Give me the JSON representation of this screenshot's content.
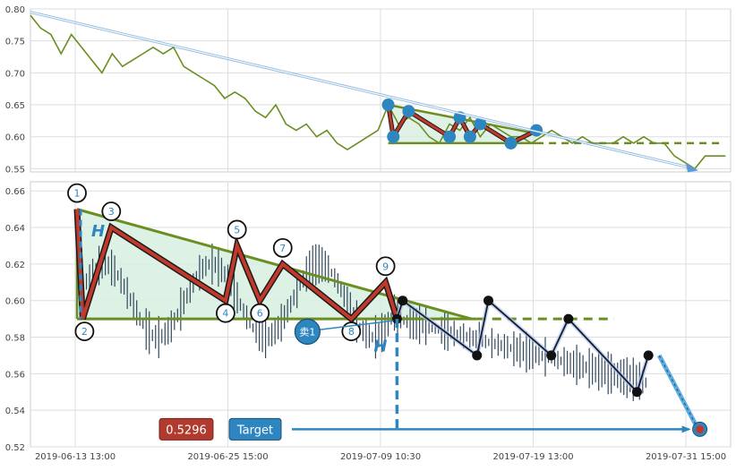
{
  "chart_data": {
    "type": "line",
    "x_ticks": [
      "2019-06-13 13:00",
      "2019-06-25 15:00",
      "2019-07-09 10:30",
      "2019-07-19 13:00",
      "2019-07-31 15:00"
    ],
    "top_panel": {
      "ylim": [
        0.545,
        0.8
      ],
      "y_ticks": [
        "0.55",
        "0.60",
        "0.65",
        "0.70",
        "0.75",
        "0.80"
      ],
      "price_series": [
        [
          0,
          0.79
        ],
        [
          2,
          0.77
        ],
        [
          4,
          0.76
        ],
        [
          6,
          0.73
        ],
        [
          8,
          0.76
        ],
        [
          10,
          0.74
        ],
        [
          12,
          0.72
        ],
        [
          14,
          0.7
        ],
        [
          16,
          0.73
        ],
        [
          18,
          0.71
        ],
        [
          20,
          0.72
        ],
        [
          22,
          0.73
        ],
        [
          24,
          0.74
        ],
        [
          26,
          0.73
        ],
        [
          28,
          0.74
        ],
        [
          30,
          0.71
        ],
        [
          32,
          0.7
        ],
        [
          34,
          0.69
        ],
        [
          36,
          0.68
        ],
        [
          38,
          0.66
        ],
        [
          40,
          0.67
        ],
        [
          42,
          0.66
        ],
        [
          44,
          0.64
        ],
        [
          46,
          0.63
        ],
        [
          48,
          0.65
        ],
        [
          50,
          0.62
        ],
        [
          52,
          0.61
        ],
        [
          54,
          0.62
        ],
        [
          56,
          0.6
        ],
        [
          58,
          0.61
        ],
        [
          60,
          0.59
        ],
        [
          62,
          0.58
        ],
        [
          64,
          0.59
        ],
        [
          66,
          0.6
        ],
        [
          68,
          0.61
        ],
        [
          70,
          0.65
        ],
        [
          72,
          0.62
        ],
        [
          74,
          0.63
        ],
        [
          76,
          0.62
        ],
        [
          78,
          0.6
        ],
        [
          80,
          0.59
        ],
        [
          82,
          0.62
        ],
        [
          84,
          0.61
        ],
        [
          86,
          0.63
        ],
        [
          88,
          0.6
        ],
        [
          90,
          0.62
        ],
        [
          92,
          0.61
        ],
        [
          94,
          0.6
        ],
        [
          96,
          0.6
        ],
        [
          98,
          0.59
        ],
        [
          100,
          0.6
        ],
        [
          102,
          0.61
        ],
        [
          104,
          0.6
        ],
        [
          106,
          0.59
        ],
        [
          108,
          0.6
        ],
        [
          110,
          0.59
        ],
        [
          112,
          0.59
        ],
        [
          114,
          0.59
        ],
        [
          116,
          0.6
        ],
        [
          118,
          0.59
        ],
        [
          120,
          0.6
        ],
        [
          122,
          0.59
        ],
        [
          124,
          0.59
        ],
        [
          126,
          0.57
        ],
        [
          128,
          0.56
        ],
        [
          130,
          0.55
        ],
        [
          132,
          0.57
        ],
        [
          134,
          0.57
        ],
        [
          136,
          0.57
        ]
      ],
      "pattern_points": [
        [
          70,
          0.65
        ],
        [
          71,
          0.6
        ],
        [
          74,
          0.64
        ],
        [
          82,
          0.6
        ],
        [
          84,
          0.63
        ],
        [
          86,
          0.6
        ],
        [
          88,
          0.62
        ],
        [
          94,
          0.59
        ],
        [
          99,
          0.61
        ]
      ],
      "triangle_upper": [
        [
          70,
          0.65
        ],
        [
          99,
          0.605
        ],
        [
          135,
          0.59
        ]
      ],
      "triangle_lower": [
        [
          70,
          0.59
        ],
        [
          135,
          0.59
        ]
      ],
      "trend_arrow": [
        [
          0,
          0.795
        ],
        [
          130,
          0.55
        ]
      ]
    },
    "bottom_panel": {
      "ylim": [
        0.52,
        0.665
      ],
      "y_ticks": [
        "0.52",
        "0.54",
        "0.56",
        "0.58",
        "0.60",
        "0.62",
        "0.64",
        "0.66"
      ],
      "pattern_points": [
        {
          "label": "1",
          "x": 0,
          "y": 0.65
        },
        {
          "label": "2",
          "x": 1,
          "y": 0.59
        },
        {
          "label": "3",
          "x": 6,
          "y": 0.64
        },
        {
          "label": "4",
          "x": 26,
          "y": 0.6
        },
        {
          "label": "5",
          "x": 28,
          "y": 0.63
        },
        {
          "label": "6",
          "x": 32,
          "y": 0.6
        },
        {
          "label": "7",
          "x": 36,
          "y": 0.62
        },
        {
          "label": "8",
          "x": 48,
          "y": 0.59
        },
        {
          "label": "9",
          "x": 54,
          "y": 0.61
        }
      ],
      "post_pattern_path": [
        [
          56,
          0.59
        ],
        [
          57,
          0.6
        ],
        [
          70,
          0.57
        ],
        [
          72,
          0.6
        ],
        [
          83,
          0.57
        ],
        [
          86,
          0.59
        ],
        [
          98,
          0.55
        ],
        [
          100,
          0.57
        ]
      ],
      "triangle_upper_end": [
        69,
        0.59
      ],
      "support_level": 0.59,
      "breakout_x": 56,
      "breakout_y": 0.59,
      "target_x": 109,
      "target_y": 0.5296,
      "sell_label": "卖1",
      "h_label": "H",
      "target_value": "0.5296",
      "target_label": "Target"
    },
    "colors": {
      "price_line": "#6b8e23",
      "pattern_fill": "#d8efe0",
      "pattern_line": "#c0392b",
      "marker": "#2e86c1",
      "post_line": "#1a1a2e",
      "dashed_support": "#6b8e23",
      "label_value_bg": "#b03a2e",
      "label_target_bg": "#2e86c1"
    }
  }
}
